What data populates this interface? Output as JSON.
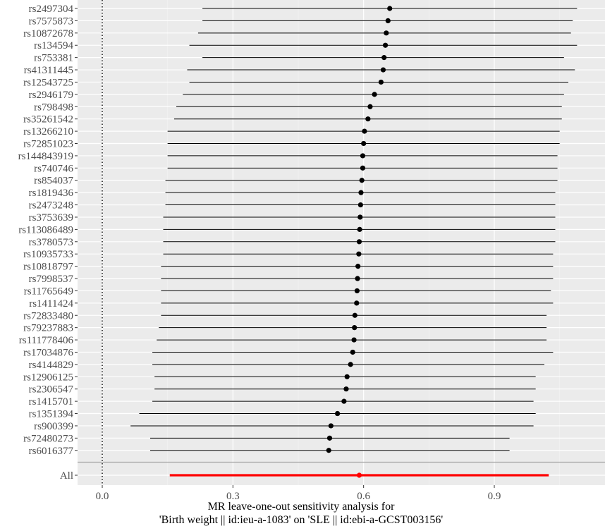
{
  "chart_data": {
    "type": "forest",
    "title": "",
    "xlabel_line1": "MR leave-one-out sensitivity analysis for",
    "xlabel_line2": "'Birth weight || id:ieu-a-1083' on 'SLE || id:ebi-a-GCST003156'",
    "ylabel": "",
    "xlim": [
      -0.06,
      1.14
    ],
    "xticks": [
      {
        "value": 0.0,
        "label": "0.0"
      },
      {
        "value": 0.3,
        "label": "0.3"
      },
      {
        "value": 0.6,
        "label": "0.6"
      },
      {
        "value": 0.9,
        "label": "0.9"
      }
    ],
    "reference_line": 0,
    "grid": true,
    "colors": {
      "panel": "#ebebeb",
      "grid_major": "#ffffff",
      "grid_minor": "#f5f5f5",
      "point": "#000000",
      "summary": "#ff0000",
      "separator": "#a6a6a6"
    },
    "rows": [
      {
        "label": "rs2497304",
        "estimate": 0.66,
        "lower": 0.23,
        "upper": 1.09
      },
      {
        "label": "rs7575873",
        "estimate": 0.656,
        "lower": 0.23,
        "upper": 1.08
      },
      {
        "label": "rs10872678",
        "estimate": 0.652,
        "lower": 0.22,
        "upper": 1.076
      },
      {
        "label": "rs134594",
        "estimate": 0.65,
        "lower": 0.2,
        "upper": 1.09
      },
      {
        "label": "rs753381",
        "estimate": 0.647,
        "lower": 0.23,
        "upper": 1.06
      },
      {
        "label": "rs41311445",
        "estimate": 0.645,
        "lower": 0.195,
        "upper": 1.085
      },
      {
        "label": "rs12543725",
        "estimate": 0.64,
        "lower": 0.2,
        "upper": 1.07
      },
      {
        "label": "rs2946179",
        "estimate": 0.625,
        "lower": 0.185,
        "upper": 1.06
      },
      {
        "label": "rs798498",
        "estimate": 0.615,
        "lower": 0.17,
        "upper": 1.055
      },
      {
        "label": "rs35261542",
        "estimate": 0.61,
        "lower": 0.165,
        "upper": 1.055
      },
      {
        "label": "rs13266210",
        "estimate": 0.602,
        "lower": 0.15,
        "upper": 1.05
      },
      {
        "label": "rs72851023",
        "estimate": 0.6,
        "lower": 0.15,
        "upper": 1.05
      },
      {
        "label": "rs144843919",
        "estimate": 0.598,
        "lower": 0.15,
        "upper": 1.045
      },
      {
        "label": "rs740746",
        "estimate": 0.598,
        "lower": 0.15,
        "upper": 1.045
      },
      {
        "label": "rs854037",
        "estimate": 0.596,
        "lower": 0.145,
        "upper": 1.045
      },
      {
        "label": "rs1819436",
        "estimate": 0.594,
        "lower": 0.145,
        "upper": 1.04
      },
      {
        "label": "rs2473248",
        "estimate": 0.593,
        "lower": 0.145,
        "upper": 1.04
      },
      {
        "label": "rs3753639",
        "estimate": 0.592,
        "lower": 0.14,
        "upper": 1.04
      },
      {
        "label": "rs113086489",
        "estimate": 0.591,
        "lower": 0.14,
        "upper": 1.04
      },
      {
        "label": "rs3780573",
        "estimate": 0.59,
        "lower": 0.14,
        "upper": 1.04
      },
      {
        "label": "rs10935733",
        "estimate": 0.589,
        "lower": 0.14,
        "upper": 1.035
      },
      {
        "label": "rs10818797",
        "estimate": 0.587,
        "lower": 0.135,
        "upper": 1.035
      },
      {
        "label": "rs7998537",
        "estimate": 0.586,
        "lower": 0.135,
        "upper": 1.035
      },
      {
        "label": "rs11765649",
        "estimate": 0.585,
        "lower": 0.135,
        "upper": 1.03
      },
      {
        "label": "rs1411424",
        "estimate": 0.584,
        "lower": 0.135,
        "upper": 1.035
      },
      {
        "label": "rs72833480",
        "estimate": 0.58,
        "lower": 0.135,
        "upper": 1.02
      },
      {
        "label": "rs79237883",
        "estimate": 0.579,
        "lower": 0.13,
        "upper": 1.02
      },
      {
        "label": "rs111778406",
        "estimate": 0.578,
        "lower": 0.125,
        "upper": 1.02
      },
      {
        "label": "rs17034876",
        "estimate": 0.575,
        "lower": 0.115,
        "upper": 1.035
      },
      {
        "label": "rs4144829",
        "estimate": 0.57,
        "lower": 0.115,
        "upper": 1.015
      },
      {
        "label": "rs12906125",
        "estimate": 0.562,
        "lower": 0.12,
        "upper": 0.995
      },
      {
        "label": "rs2306547",
        "estimate": 0.56,
        "lower": 0.12,
        "upper": 0.995
      },
      {
        "label": "rs1415701",
        "estimate": 0.555,
        "lower": 0.115,
        "upper": 0.99
      },
      {
        "label": "rs1351394",
        "estimate": 0.54,
        "lower": 0.085,
        "upper": 0.995
      },
      {
        "label": "rs900399",
        "estimate": 0.525,
        "lower": 0.065,
        "upper": 0.99
      },
      {
        "label": "rs72480273",
        "estimate": 0.522,
        "lower": 0.11,
        "upper": 0.935
      },
      {
        "label": "rs6016377",
        "estimate": 0.52,
        "lower": 0.11,
        "upper": 0.935
      }
    ],
    "summary": {
      "label": "All",
      "estimate": 0.59,
      "lower": 0.155,
      "upper": 1.025
    }
  }
}
